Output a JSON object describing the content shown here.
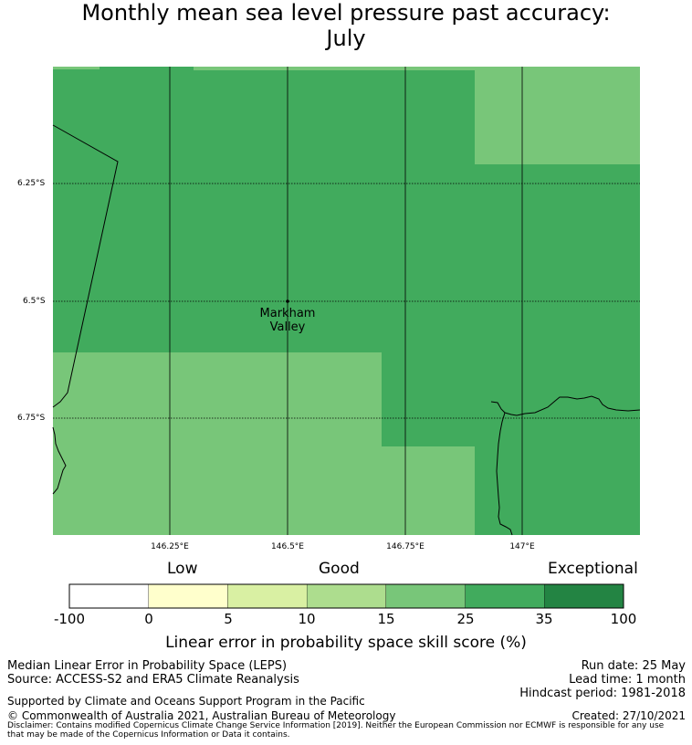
{
  "title_line1": "Monthly mean sea level pressure past accuracy:",
  "title_line2": "July",
  "map": {
    "lat_ticks": [
      "6.25°S",
      "6.5°S",
      "6.75°S"
    ],
    "lon_ticks": [
      "146.25°E",
      "146.5°E",
      "146.75°E",
      "147°E"
    ],
    "place_name_line1": "Markham",
    "place_name_line2": "Valley",
    "colors": {
      "skill_25_35": "#41ab5d",
      "skill_15_25": "#78c679",
      "coastline": "#000000"
    }
  },
  "colorbar": {
    "categories": [
      "Low",
      "Good",
      "Exceptional"
    ],
    "ticks": [
      "-100",
      "0",
      "5",
      "10",
      "15",
      "25",
      "35",
      "100"
    ],
    "colors": [
      "#ffffff",
      "#ffffcc",
      "#d9f0a3",
      "#addd8e",
      "#78c679",
      "#41ab5d",
      "#238443"
    ],
    "label": "Linear error in probability space skill score (%)"
  },
  "footer": {
    "method": "Median Linear Error in Probability Space (LEPS)",
    "source": "Source: ACCESS-S2 and ERA5 Climate Reanalysis",
    "supported": "Supported by Climate and Oceans Support Program in the Pacific",
    "copyright": "© Commonwealth of Australia 2021, Australian Bureau of Meteorology",
    "disclaimer_line1": "Disclaimer: Contains modified Copernicus Climate Change Service Information [2019]. Neither the European Commission nor ECMWF is responsible for any use",
    "disclaimer_line2": "that may be made of the Copernicus Information or Data it contains.",
    "run_date": "Run date: 25 May",
    "lead_time": "Lead time: 1 month",
    "hindcast": "Hindcast period: 1981-2018",
    "created": "Created: 27/10/2021"
  }
}
